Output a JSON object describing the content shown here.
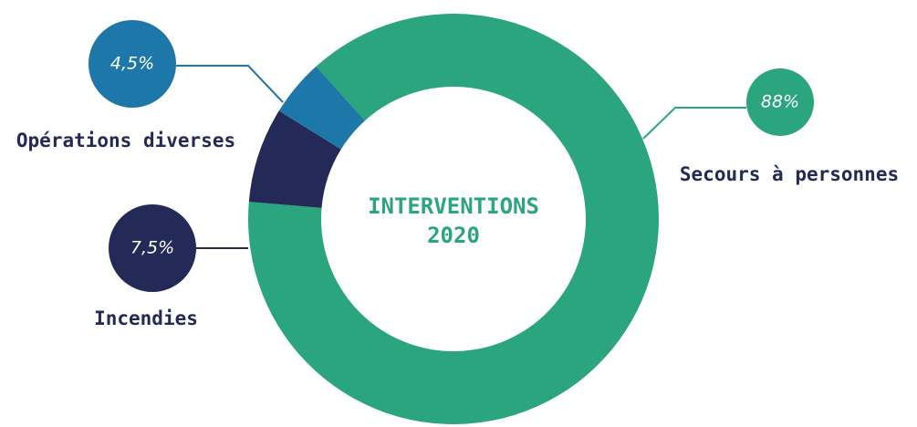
{
  "chart_data": {
    "type": "donut",
    "title": "INTERVENTIONS",
    "subtitle": "2020",
    "categories": [
      "Secours à personnes",
      "Incendies",
      "Opérations diverses"
    ],
    "values": [
      88,
      7.5,
      4.5
    ],
    "value_labels": [
      "88%",
      "7,5%",
      "4,5%"
    ],
    "colors": [
      "#2aa57d",
      "#232a57",
      "#1d77a8"
    ]
  }
}
